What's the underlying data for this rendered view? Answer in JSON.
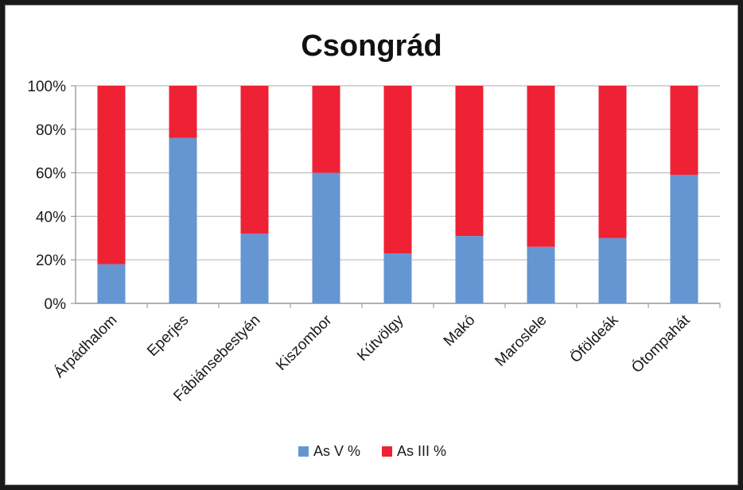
{
  "chart_data": {
    "type": "bar",
    "stacked": true,
    "title": "Csongrád",
    "categories": [
      "Árpádhalom",
      "Eperjes",
      "Fábiánsebestyén",
      "Kiszombor",
      "Kútvölgy",
      "Makó",
      "Maroslele",
      "Öföldeák",
      "Ótompahát"
    ],
    "series": [
      {
        "name": "As V %",
        "color": "#6596d2",
        "values": [
          18,
          76,
          32,
          60,
          23,
          31,
          26,
          30,
          59
        ]
      },
      {
        "name": "As III %",
        "color": "#ee2234",
        "values": [
          82,
          24,
          68,
          40,
          77,
          69,
          74,
          70,
          41
        ]
      }
    ],
    "yticks": [
      "0%",
      "20%",
      "40%",
      "60%",
      "80%",
      "100%"
    ],
    "ylim": [
      0,
      100
    ],
    "grid": true,
    "legend_position": "bottom"
  }
}
